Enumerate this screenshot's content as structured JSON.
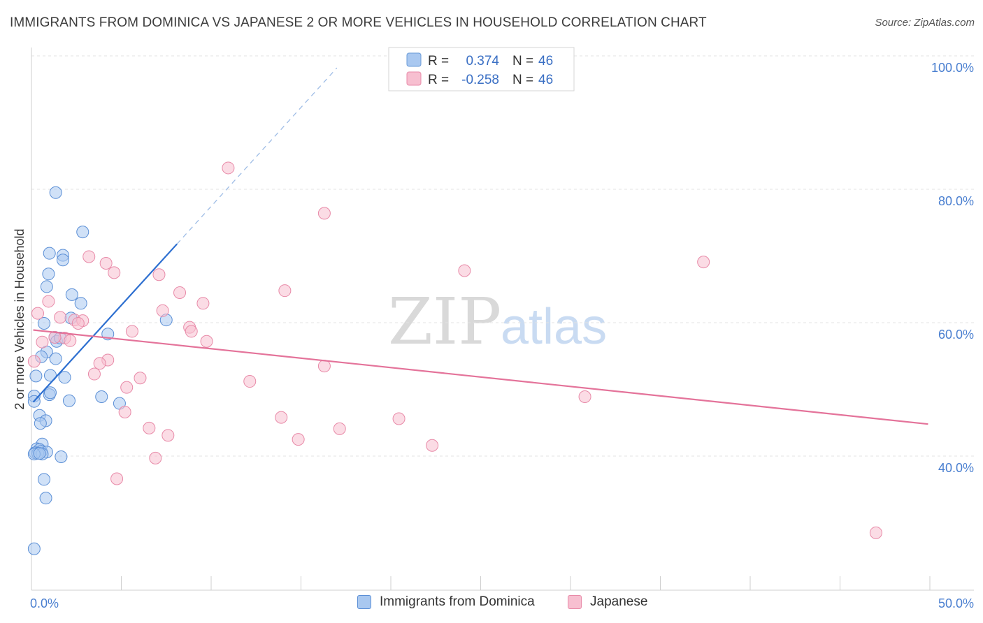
{
  "header": {
    "title": "IMMIGRANTS FROM DOMINICA VS JAPANESE 2 OR MORE VEHICLES IN HOUSEHOLD CORRELATION CHART",
    "source": "Source: ZipAtlas.com"
  },
  "watermark": {
    "zip": "ZIP",
    "atlas": "atlas"
  },
  "stats_legend": {
    "rows": [
      {
        "r_label": "R =",
        "r_value": "0.374",
        "n_label": "N =",
        "n_value": "46",
        "color": "#a9c8f0",
        "stroke": "#6a9bd8"
      },
      {
        "r_label": "R =",
        "r_value": "-0.258",
        "n_label": "N =",
        "n_value": "46",
        "color": "#f7bfd0",
        "stroke": "#e88aa8"
      }
    ]
  },
  "chart_data": {
    "type": "scatter",
    "title": "IMMIGRANTS FROM DOMINICA VS JAPANESE 2 OR MORE VEHICLES IN HOUSEHOLD CORRELATION CHART",
    "xlabel": "",
    "ylabel": "2 or more Vehicles in Household",
    "xlim": [
      0,
      50
    ],
    "ylim": [
      20,
      103
    ],
    "x_tick_labels": [
      "0.0%",
      "50.0%"
    ],
    "y_ticks": [
      40,
      60,
      80,
      100
    ],
    "y_tick_labels": [
      "40.0%",
      "60.0%",
      "80.0%",
      "100.0%"
    ],
    "grid": true,
    "legend_position": "bottom-center",
    "series": [
      {
        "name": "Immigrants from Dominica",
        "color": "#a9c8f0",
        "stroke": "#5b8fd6",
        "line_color": "#2d6fd0",
        "trend": {
          "x0": 0.1,
          "y0": 48.1,
          "x1": 8.1,
          "y1": 71.8,
          "dash_to_x": 17.0,
          "dash_to_y": 98.2
        },
        "points": [
          [
            1.35,
            79.5
          ],
          [
            2.85,
            73.6
          ],
          [
            1.0,
            70.4
          ],
          [
            1.75,
            70.1
          ],
          [
            1.75,
            69.4
          ],
          [
            0.95,
            67.3
          ],
          [
            0.85,
            65.4
          ],
          [
            2.25,
            64.2
          ],
          [
            2.75,
            62.9
          ],
          [
            7.5,
            60.4
          ],
          [
            2.2,
            60.7
          ],
          [
            0.7,
            59.9
          ],
          [
            4.25,
            58.3
          ],
          [
            1.3,
            57.8
          ],
          [
            1.4,
            57.2
          ],
          [
            1.6,
            57.7
          ],
          [
            0.85,
            55.6
          ],
          [
            0.55,
            54.9
          ],
          [
            1.35,
            54.6
          ],
          [
            0.25,
            52.0
          ],
          [
            1.05,
            52.1
          ],
          [
            1.85,
            51.8
          ],
          [
            1.0,
            49.2
          ],
          [
            0.15,
            49.0
          ],
          [
            1.05,
            49.5
          ],
          [
            3.9,
            48.9
          ],
          [
            2.1,
            48.3
          ],
          [
            0.15,
            48.2
          ],
          [
            4.9,
            47.9
          ],
          [
            0.45,
            46.1
          ],
          [
            0.8,
            45.3
          ],
          [
            0.5,
            44.9
          ],
          [
            0.6,
            41.8
          ],
          [
            0.3,
            41.1
          ],
          [
            0.45,
            41.0
          ],
          [
            0.55,
            40.7
          ],
          [
            0.2,
            40.5
          ],
          [
            0.85,
            40.6
          ],
          [
            0.35,
            40.4
          ],
          [
            0.6,
            40.3
          ],
          [
            0.15,
            40.3
          ],
          [
            1.65,
            39.9
          ],
          [
            0.7,
            36.5
          ],
          [
            0.8,
            33.7
          ],
          [
            0.15,
            26.1
          ],
          [
            0.45,
            40.4
          ]
        ]
      },
      {
        "name": "Japanese",
        "color": "#f7bfd0",
        "stroke": "#e88aa8",
        "line_color": "#e4739a",
        "trend": {
          "x0": 0.1,
          "y0": 58.9,
          "x1": 49.9,
          "y1": 44.8
        },
        "points": [
          [
            10.95,
            83.2
          ],
          [
            16.3,
            76.4
          ],
          [
            37.4,
            69.1
          ],
          [
            24.1,
            67.8
          ],
          [
            3.2,
            69.9
          ],
          [
            4.15,
            68.9
          ],
          [
            4.6,
            67.5
          ],
          [
            7.1,
            67.2
          ],
          [
            14.1,
            64.8
          ],
          [
            8.25,
            64.5
          ],
          [
            9.55,
            62.9
          ],
          [
            0.95,
            63.2
          ],
          [
            7.3,
            61.8
          ],
          [
            0.35,
            61.4
          ],
          [
            1.6,
            60.8
          ],
          [
            2.4,
            60.4
          ],
          [
            2.85,
            60.3
          ],
          [
            2.6,
            59.9
          ],
          [
            8.8,
            59.3
          ],
          [
            8.9,
            58.7
          ],
          [
            5.6,
            58.7
          ],
          [
            1.85,
            57.7
          ],
          [
            2.15,
            57.3
          ],
          [
            9.75,
            57.2
          ],
          [
            0.6,
            57.1
          ],
          [
            0.15,
            54.2
          ],
          [
            4.25,
            54.4
          ],
          [
            3.8,
            53.9
          ],
          [
            16.3,
            53.5
          ],
          [
            3.5,
            52.3
          ],
          [
            6.05,
            51.7
          ],
          [
            12.15,
            51.2
          ],
          [
            5.3,
            50.3
          ],
          [
            30.8,
            48.9
          ],
          [
            5.2,
            46.6
          ],
          [
            13.9,
            45.8
          ],
          [
            20.45,
            45.6
          ],
          [
            17.15,
            44.1
          ],
          [
            6.55,
            44.2
          ],
          [
            7.6,
            43.1
          ],
          [
            14.85,
            42.5
          ],
          [
            22.3,
            41.6
          ],
          [
            6.9,
            39.7
          ],
          [
            4.75,
            36.6
          ],
          [
            47.0,
            28.5
          ],
          [
            1.3,
            57.8
          ]
        ]
      }
    ]
  },
  "bottom_legend": {
    "items": [
      {
        "label": "Immigrants from Dominica",
        "color": "#a9c8f0",
        "stroke": "#5b8fd6"
      },
      {
        "label": "Japanese",
        "color": "#f7bfd0",
        "stroke": "#e88aa8"
      }
    ]
  }
}
